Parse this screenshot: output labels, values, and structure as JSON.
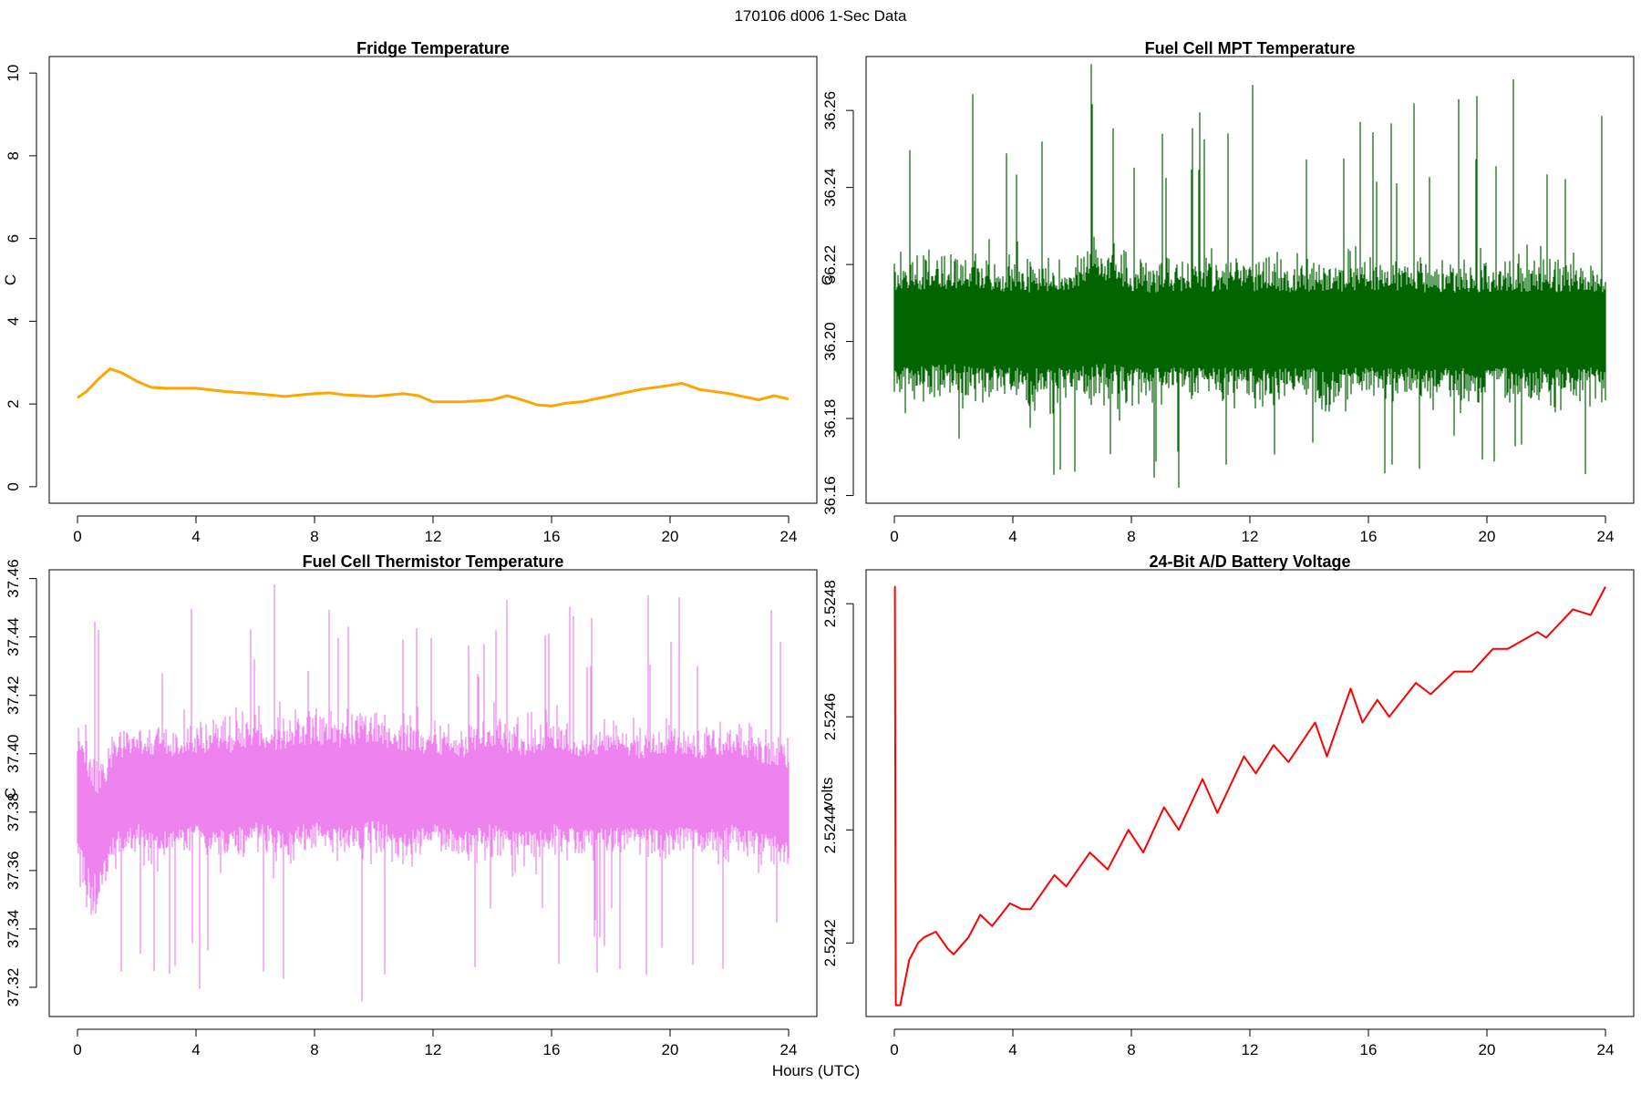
{
  "suptitle": "170106   d006   1-Sec Data",
  "xlabel": "Hours (UTC)",
  "chart_data": [
    {
      "type": "line",
      "title": "Fridge Temperature",
      "xlabel": "",
      "ylabel": "C",
      "xlim": [
        0,
        24
      ],
      "ylim": [
        -0.4,
        10.4
      ],
      "xticks": [
        "0",
        "4",
        "8",
        "12",
        "16",
        "20",
        "24"
      ],
      "yticks": [
        "0",
        "2",
        "4",
        "6",
        "8",
        "10"
      ],
      "color": "#FFA500",
      "noise": 0,
      "series": [
        {
          "x": [
            0,
            0.3,
            0.7,
            1.1,
            1.5,
            2.0,
            2.5,
            3.0,
            4.0,
            5.0,
            6.0,
            7.0,
            8.0,
            8.5,
            9.0,
            10.0,
            11.0,
            11.5,
            12.0,
            13.0,
            14.0,
            14.5,
            15.0,
            15.5,
            16.0,
            16.5,
            17.0,
            18.0,
            19.0,
            20.0,
            20.4,
            21.0,
            22.0,
            23.0,
            23.5,
            24.0
          ],
          "y": [
            2.15,
            2.3,
            2.6,
            2.85,
            2.75,
            2.55,
            2.4,
            2.38,
            2.38,
            2.3,
            2.25,
            2.18,
            2.25,
            2.27,
            2.22,
            2.18,
            2.25,
            2.2,
            2.05,
            2.05,
            2.1,
            2.2,
            2.1,
            1.98,
            1.95,
            2.02,
            2.05,
            2.2,
            2.35,
            2.45,
            2.5,
            2.35,
            2.25,
            2.1,
            2.2,
            2.12
          ]
        }
      ]
    },
    {
      "type": "line",
      "title": "Fuel Cell MPT Temperature",
      "xlabel": "",
      "ylabel": "C",
      "xlim": [
        0,
        24
      ],
      "ylim": [
        36.158,
        36.274
      ],
      "xticks": [
        "0",
        "4",
        "8",
        "12",
        "16",
        "20",
        "24"
      ],
      "yticks": [
        "36.16",
        "36.18",
        "36.20",
        "36.22",
        "36.24",
        "36.26"
      ],
      "color": "#006400",
      "noise": 1,
      "series": [
        {
          "x": [
            0,
            2,
            4,
            6,
            6.7,
            8,
            10,
            12,
            14,
            16,
            18,
            20,
            22,
            24
          ],
          "center": [
            36.203,
            36.204,
            36.203,
            36.203,
            36.206,
            36.203,
            36.203,
            36.203,
            36.203,
            36.203,
            36.203,
            36.203,
            36.203,
            36.203
          ],
          "band": [
            0.013,
            0.013,
            0.013,
            0.013,
            0.015,
            0.013,
            0.013,
            0.013,
            0.013,
            0.013,
            0.013,
            0.013,
            0.013,
            0.013
          ],
          "max": 36.272,
          "min": 36.162
        }
      ]
    },
    {
      "type": "line",
      "title": "Fuel Cell Thermistor Temperature",
      "xlabel": "",
      "ylabel": "C",
      "xlim": [
        0,
        24
      ],
      "ylim": [
        37.31,
        37.463
      ],
      "xticks": [
        "0",
        "4",
        "8",
        "12",
        "16",
        "20",
        "24"
      ],
      "yticks": [
        "37.32",
        "37.34",
        "37.36",
        "37.38",
        "37.40",
        "37.42",
        "37.44",
        "37.46"
      ],
      "color": "#EE82EE",
      "noise": 1,
      "series": [
        {
          "x": [
            0,
            0.3,
            0.7,
            1.0,
            1.3,
            2,
            3,
            4,
            5,
            6,
            7,
            8,
            9,
            10,
            11,
            12,
            13,
            14,
            15,
            16,
            17,
            18,
            19,
            20,
            21,
            22,
            23,
            24
          ],
          "center": [
            37.385,
            37.378,
            37.372,
            37.378,
            37.386,
            37.388,
            37.386,
            37.388,
            37.387,
            37.39,
            37.387,
            37.39,
            37.388,
            37.391,
            37.386,
            37.388,
            37.386,
            37.389,
            37.386,
            37.389,
            37.386,
            37.388,
            37.386,
            37.388,
            37.386,
            37.388,
            37.385,
            37.383
          ],
          "band": [
            0.018,
            0.02,
            0.018,
            0.016,
            0.016,
            0.016,
            0.017,
            0.016,
            0.017,
            0.017,
            0.018,
            0.017,
            0.018,
            0.017,
            0.018,
            0.016,
            0.017,
            0.017,
            0.017,
            0.017,
            0.016,
            0.016,
            0.016,
            0.016,
            0.016,
            0.016,
            0.016,
            0.016
          ],
          "max": 37.458,
          "min": 37.315
        }
      ]
    },
    {
      "type": "line",
      "title": "24-Bit A/D Battery Voltage",
      "xlabel": "",
      "ylabel": "volts",
      "xlim": [
        0,
        24
      ],
      "ylim": [
        2.52407,
        2.52486
      ],
      "xticks": [
        "0",
        "4",
        "8",
        "12",
        "16",
        "20",
        "24"
      ],
      "yticks": [
        "2.5242",
        "2.5244",
        "2.5246",
        "2.5248"
      ],
      "color": "#FF0000",
      "noise": 0,
      "series": [
        {
          "x": [
            0,
            0.02,
            0.05,
            0.2,
            0.5,
            0.8,
            1.0,
            1.4,
            1.8,
            2.0,
            2.5,
            2.9,
            3.3,
            3.9,
            4.3,
            4.6,
            5.4,
            5.8,
            6.6,
            7.2,
            7.9,
            8.4,
            9.1,
            9.6,
            10.4,
            10.9,
            11.8,
            12.2,
            12.8,
            13.3,
            14.2,
            14.6,
            15.4,
            15.8,
            16.3,
            16.7,
            17.6,
            18.1,
            18.9,
            19.5,
            20.2,
            20.7,
            21.7,
            22.0,
            22.9,
            23.5,
            24.0
          ],
          "y": [
            2.52483,
            2.52483,
            2.52409,
            2.52409,
            2.52417,
            2.5242,
            2.52421,
            2.52422,
            2.52419,
            2.52418,
            2.52421,
            2.52425,
            2.52423,
            2.52427,
            2.52426,
            2.52426,
            2.52432,
            2.5243,
            2.52436,
            2.52433,
            2.5244,
            2.52436,
            2.52444,
            2.5244,
            2.52449,
            2.52443,
            2.52453,
            2.5245,
            2.52455,
            2.52452,
            2.52459,
            2.52453,
            2.52465,
            2.52459,
            2.52463,
            2.5246,
            2.52466,
            2.52464,
            2.52468,
            2.52468,
            2.52472,
            2.52472,
            2.52475,
            2.52474,
            2.52479,
            2.52478,
            2.52483
          ]
        }
      ]
    }
  ]
}
